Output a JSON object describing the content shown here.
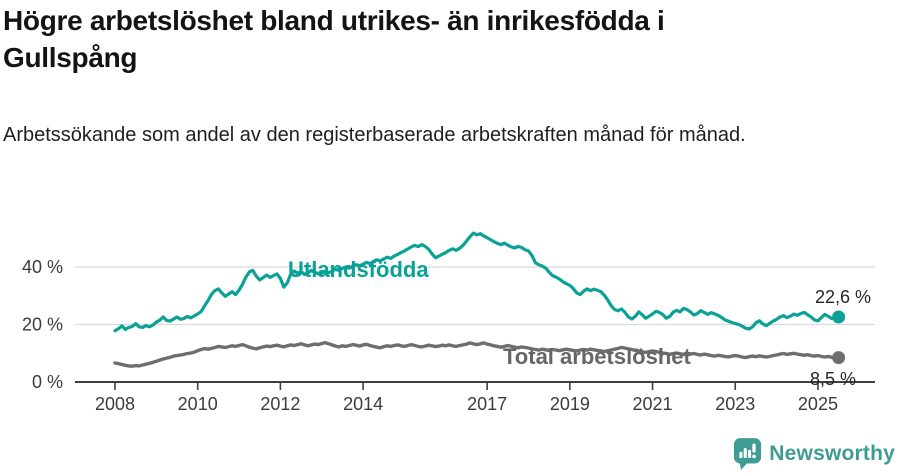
{
  "header": {
    "title": "Högre arbetslöshet bland utrikes- än inrikesfödda i Gullspång",
    "subtitle": "Arbetssökande som andel av den registerbaserade arbetskraften månad för månad."
  },
  "chart_data": {
    "type": "line",
    "title": "Högre arbetslöshet bland utrikes- än inrikesfödda i Gullspång",
    "xlabel": "",
    "ylabel": "",
    "x_unit": "months from January 2008 to July 2025",
    "ylim": [
      0,
      55
    ],
    "grid": "horizontal",
    "legend_position": "inline-labels-on-lines",
    "y_ticks": [
      {
        "value": 0,
        "label": "0 %"
      },
      {
        "value": 20,
        "label": "20 %"
      },
      {
        "value": 40,
        "label": "40 %"
      }
    ],
    "x_ticks": [
      {
        "value": 2008,
        "label": "2008"
      },
      {
        "value": 2010,
        "label": "2010"
      },
      {
        "value": 2012,
        "label": "2012"
      },
      {
        "value": 2014,
        "label": "2014"
      },
      {
        "value": 2017,
        "label": "2017"
      },
      {
        "value": 2019,
        "label": "2019"
      },
      {
        "value": 2021,
        "label": "2021"
      },
      {
        "value": 2023,
        "label": "2023"
      },
      {
        "value": 2025,
        "label": "2025"
      }
    ],
    "x_start_year": 2008,
    "points_per_year": 12,
    "series": [
      {
        "name": "Utlandsfödda",
        "color": "#0aa296",
        "end_label": "22,6 %",
        "end_value": 22.6,
        "values": [
          17.8,
          18.5,
          19.5,
          18.3,
          19.0,
          19.3,
          20.3,
          19.2,
          19.0,
          19.6,
          19.2,
          19.8,
          20.8,
          21.5,
          22.6,
          21.4,
          21.2,
          21.9,
          22.6,
          21.8,
          22.1,
          22.8,
          22.3,
          23.0,
          23.7,
          24.5,
          26.5,
          28.3,
          30.5,
          31.8,
          32.4,
          31.0,
          29.8,
          30.6,
          31.4,
          30.4,
          32.0,
          34.0,
          36.5,
          38.3,
          38.8,
          36.8,
          35.5,
          36.3,
          37.2,
          36.4,
          37.0,
          37.6,
          36.0,
          33.0,
          34.5,
          37.5,
          38.6,
          37.8,
          38.4,
          37.4,
          38.0,
          38.8,
          38.2,
          37.6,
          37.9,
          38.4,
          38.0,
          38.6,
          39.2,
          38.8,
          39.5,
          40.0,
          39.6,
          40.3,
          40.8,
          40.4,
          41.0,
          41.6,
          41.2,
          41.9,
          42.5,
          42.1,
          42.8,
          43.4,
          43.0,
          43.8,
          44.4,
          45.0,
          45.6,
          46.3,
          47.0,
          47.5,
          47.1,
          47.8,
          47.2,
          46.2,
          44.6,
          43.2,
          43.8,
          44.5,
          45.0,
          45.8,
          46.3,
          45.8,
          46.5,
          47.5,
          49.0,
          50.5,
          51.8,
          51.2,
          51.6,
          50.8,
          50.2,
          49.5,
          48.8,
          48.2,
          47.8,
          48.3,
          47.6,
          47.0,
          46.6,
          47.2,
          46.8,
          46.0,
          45.6,
          44.0,
          41.5,
          40.8,
          40.3,
          39.6,
          38.2,
          37.0,
          36.5,
          35.8,
          34.8,
          34.2,
          33.6,
          32.5,
          31.0,
          30.4,
          31.6,
          32.4,
          31.8,
          32.3,
          31.9,
          31.4,
          30.2,
          28.5,
          26.5,
          25.2,
          24.8,
          25.4,
          24.2,
          22.6,
          21.9,
          22.8,
          24.4,
          23.4,
          22.2,
          22.9,
          23.7,
          24.6,
          24.2,
          23.4,
          22.2,
          22.8,
          24.3,
          24.9,
          24.4,
          25.6,
          25.2,
          24.4,
          23.3,
          23.8,
          24.8,
          24.2,
          23.5,
          24.1,
          23.7,
          23.2,
          22.5,
          21.6,
          21.2,
          20.7,
          20.3,
          20.0,
          19.4,
          18.7,
          18.4,
          19.2,
          20.6,
          21.3,
          20.2,
          19.6,
          20.4,
          21.2,
          21.8,
          22.6,
          23.1,
          22.4,
          22.9,
          23.6,
          23.2,
          23.8,
          24.2,
          23.4,
          22.6,
          21.6,
          21.3,
          22.4,
          23.5,
          22.8,
          22.1,
          22.4,
          22.6
        ]
      },
      {
        "name": "Total arbetslöshet",
        "color": "#6e6e6e",
        "end_label": "8,5 %",
        "end_value": 8.5,
        "values": [
          6.6,
          6.4,
          6.1,
          5.8,
          5.6,
          5.5,
          5.7,
          5.6,
          5.9,
          6.2,
          6.5,
          6.8,
          7.2,
          7.6,
          8.0,
          8.3,
          8.6,
          9.0,
          9.2,
          9.4,
          9.6,
          9.9,
          10.1,
          10.4,
          10.9,
          11.3,
          11.6,
          11.4,
          11.7,
          12.0,
          12.4,
          12.2,
          12.0,
          12.3,
          12.6,
          12.4,
          12.7,
          13.0,
          12.6,
          12.1,
          11.8,
          11.5,
          11.9,
          12.2,
          12.5,
          12.3,
          12.6,
          12.8,
          12.5,
          12.2,
          12.6,
          12.9,
          12.7,
          13.0,
          13.3,
          12.9,
          12.6,
          12.9,
          13.2,
          13.0,
          13.4,
          13.7,
          13.3,
          12.9,
          12.5,
          12.2,
          12.6,
          12.4,
          12.7,
          13.0,
          12.8,
          12.5,
          12.9,
          13.1,
          12.7,
          12.4,
          12.1,
          11.9,
          12.3,
          12.6,
          12.4,
          12.7,
          12.9,
          12.6,
          12.4,
          12.7,
          13.0,
          12.7,
          12.4,
          12.2,
          12.5,
          12.8,
          12.6,
          12.3,
          12.5,
          12.8,
          12.6,
          12.9,
          12.6,
          12.4,
          12.7,
          12.9,
          13.2,
          13.6,
          13.3,
          13.0,
          13.3,
          13.6,
          13.2,
          12.9,
          12.6,
          12.4,
          12.1,
          12.4,
          12.7,
          12.4,
          12.1,
          11.9,
          12.2,
          12.0,
          11.8,
          11.5,
          11.3,
          11.1,
          11.4,
          11.2,
          11.0,
          11.3,
          11.1,
          10.9,
          11.2,
          11.4,
          11.2,
          11.0,
          10.8,
          11.1,
          11.3,
          11.1,
          11.4,
          11.2,
          11.0,
          10.8,
          10.6,
          10.9,
          11.1,
          11.4,
          11.7,
          12.0,
          11.8,
          11.5,
          11.3,
          11.0,
          10.8,
          10.5,
          10.3,
          10.6,
          10.8,
          10.6,
          10.3,
          10.1,
          9.9,
          9.6,
          9.9,
          10.1,
          9.8,
          9.6,
          9.4,
          9.7,
          9.9,
          9.6,
          9.4,
          9.7,
          9.5,
          9.2,
          9.0,
          9.3,
          9.1,
          8.9,
          8.7,
          9.0,
          9.2,
          9.0,
          8.7,
          8.5,
          8.8,
          9.0,
          8.8,
          9.1,
          8.9,
          8.7,
          8.9,
          9.2,
          9.4,
          9.7,
          9.9,
          9.6,
          9.8,
          10.0,
          9.7,
          9.5,
          9.3,
          9.5,
          9.2,
          9.0,
          9.2,
          8.9,
          8.7,
          8.9,
          8.6,
          8.4,
          8.5
        ]
      }
    ]
  },
  "footer": {
    "brand": "Newsworthy",
    "brand_color": "#3f9c94",
    "logo_icon": "newsworthy-chart-bubble-icon"
  }
}
